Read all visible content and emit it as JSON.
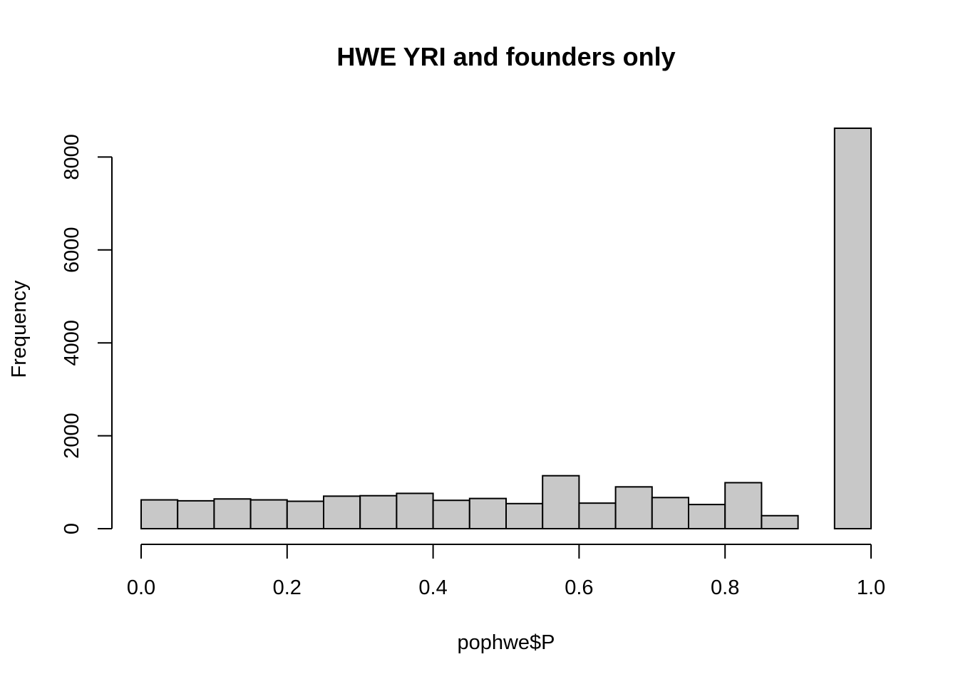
{
  "chart_data": {
    "type": "bar",
    "title": "HWE YRI and founders only",
    "xlabel": "pophwe$P",
    "ylabel": "Frequency",
    "bin_edges": [
      0.0,
      0.05,
      0.1,
      0.15,
      0.2,
      0.25,
      0.3,
      0.35,
      0.4,
      0.45,
      0.5,
      0.55,
      0.6,
      0.65,
      0.7,
      0.75,
      0.8,
      0.85,
      0.9,
      0.95,
      1.0
    ],
    "values": [
      620,
      600,
      640,
      620,
      590,
      700,
      710,
      760,
      610,
      650,
      540,
      1140,
      550,
      900,
      670,
      520,
      990,
      280,
      0,
      8620
    ],
    "xlim": [
      0.0,
      1.0
    ],
    "ylim": [
      0,
      8620
    ],
    "x_ticks": [
      0.0,
      0.2,
      0.4,
      0.6,
      0.8,
      1.0
    ],
    "x_tick_labels": [
      "0.0",
      "0.2",
      "0.4",
      "0.6",
      "0.8",
      "1.0"
    ],
    "y_ticks": [
      0,
      2000,
      4000,
      6000,
      8000
    ],
    "y_tick_labels": [
      "0",
      "2000",
      "4000",
      "6000",
      "8000"
    ],
    "grid": false,
    "legend": "none"
  }
}
